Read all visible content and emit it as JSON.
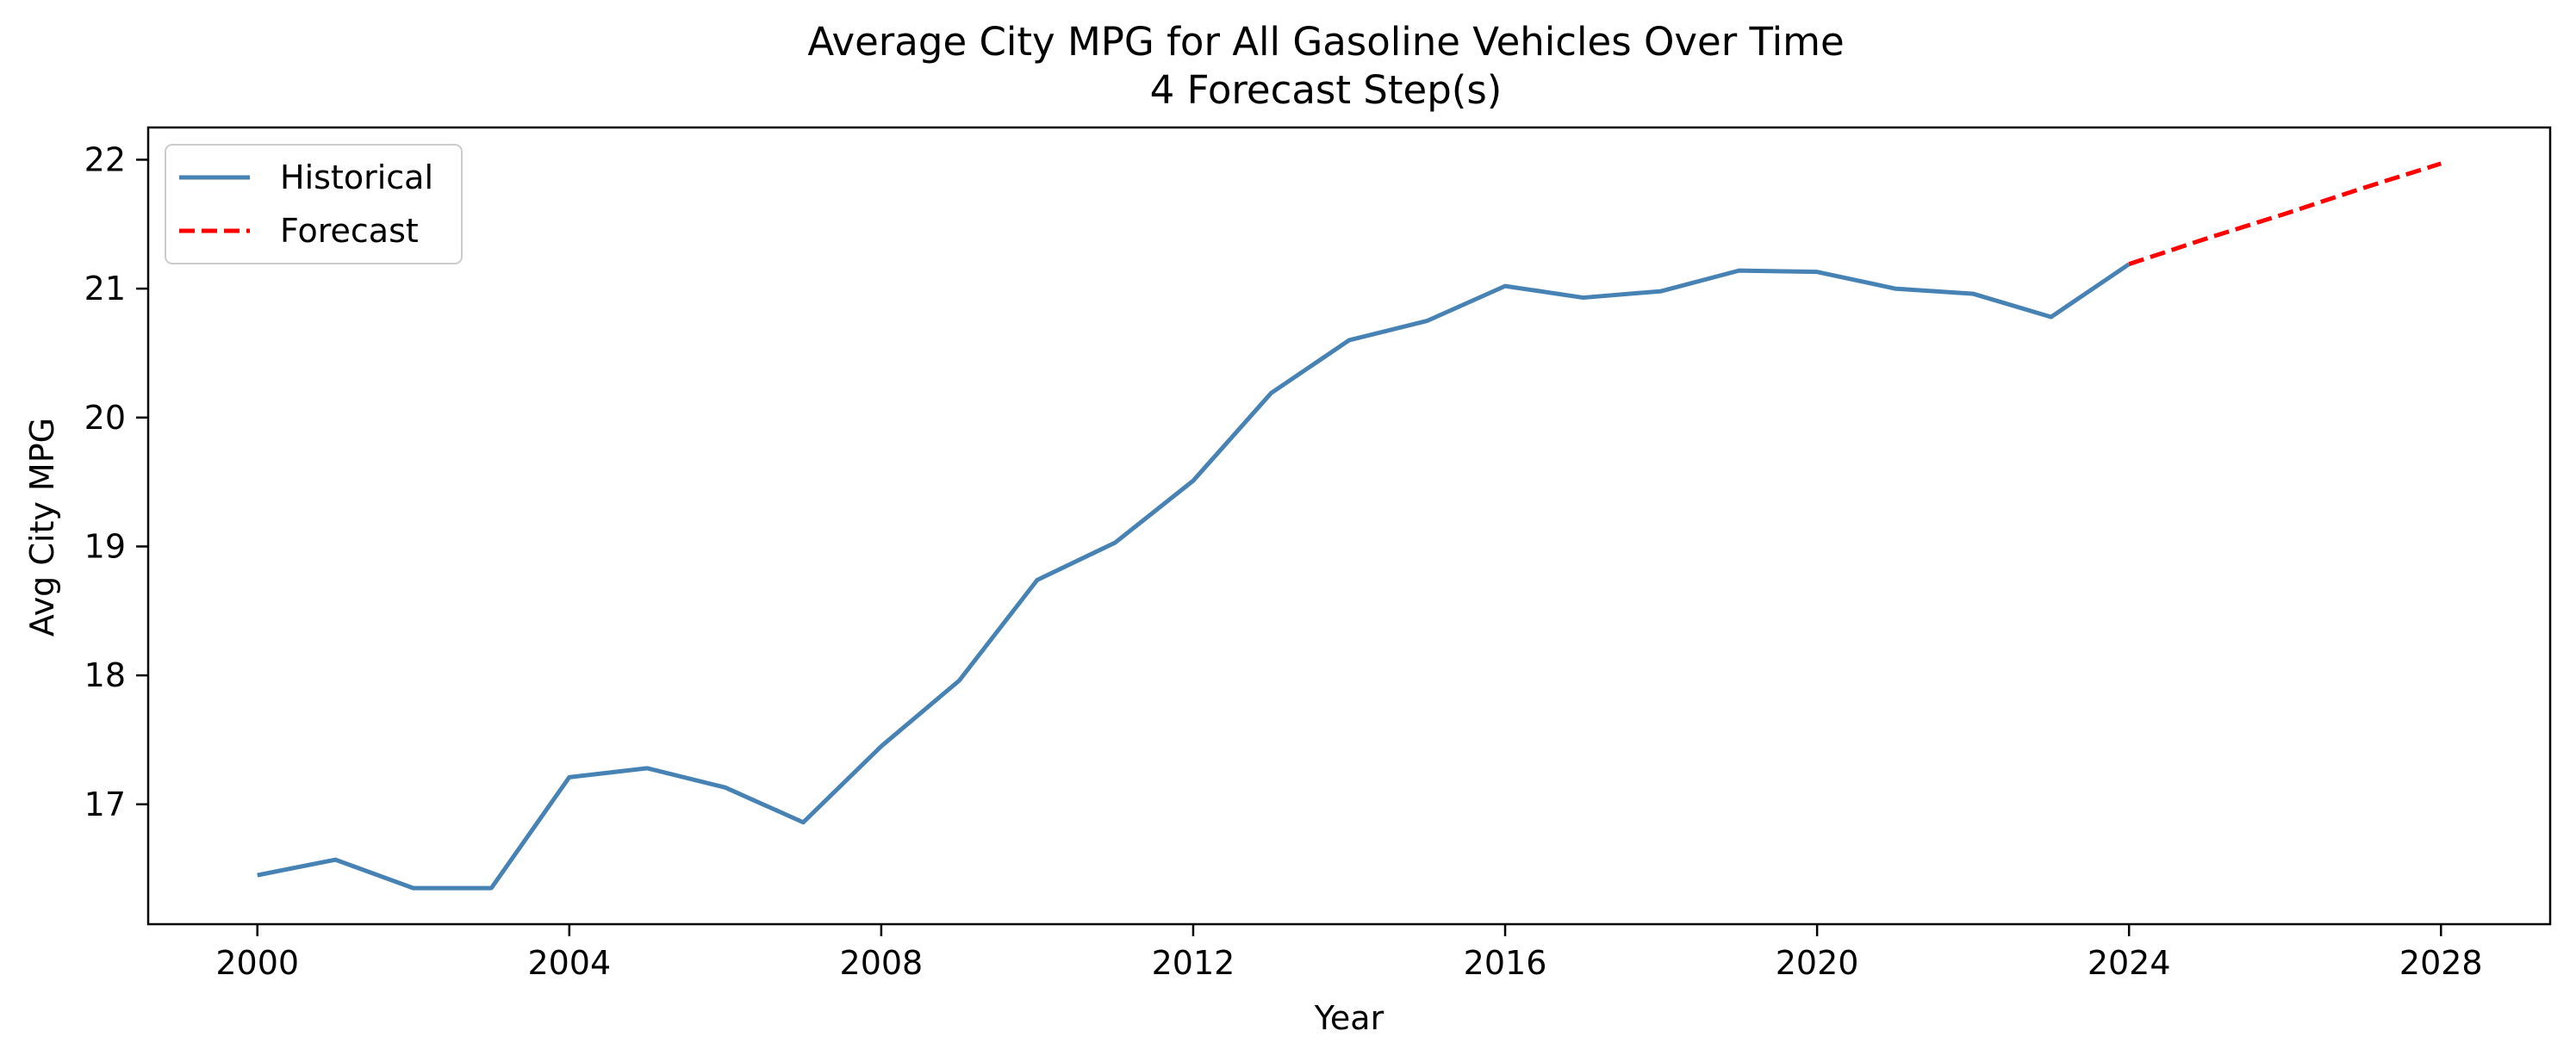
{
  "chart_data": {
    "type": "line",
    "title": "Average City MPG for All Gasoline Vehicles Over Time",
    "subtitle": "4 Forecast Step(s)",
    "xlabel": "Year",
    "ylabel": "Avg City MPG",
    "xlim": [
      1998.6,
      2029.4
    ],
    "ylim": [
      16.07,
      22.25
    ],
    "xticks": [
      2000,
      2004,
      2008,
      2012,
      2016,
      2020,
      2024,
      2028
    ],
    "yticks": [
      17,
      18,
      19,
      20,
      21,
      22
    ],
    "grid": false,
    "legend_position": "top-left",
    "series": [
      {
        "name": "Historical",
        "color": "#4682b4",
        "style": "solid",
        "x": [
          2000,
          2001,
          2002,
          2003,
          2004,
          2005,
          2006,
          2007,
          2008,
          2009,
          2010,
          2011,
          2012,
          2013,
          2014,
          2015,
          2016,
          2017,
          2018,
          2019,
          2020,
          2021,
          2022,
          2023,
          2024
        ],
        "y": [
          16.45,
          16.57,
          16.35,
          16.35,
          17.21,
          17.28,
          17.13,
          16.86,
          17.45,
          17.96,
          18.74,
          19.03,
          19.51,
          20.19,
          20.6,
          20.75,
          21.02,
          20.93,
          20.98,
          21.14,
          21.13,
          21.0,
          20.96,
          20.78,
          21.19
        ]
      },
      {
        "name": "Forecast",
        "color": "#ff0000",
        "style": "dashed",
        "x": [
          2024,
          2025,
          2026,
          2027,
          2028
        ],
        "y": [
          21.19,
          21.39,
          21.58,
          21.78,
          21.97
        ]
      }
    ]
  }
}
